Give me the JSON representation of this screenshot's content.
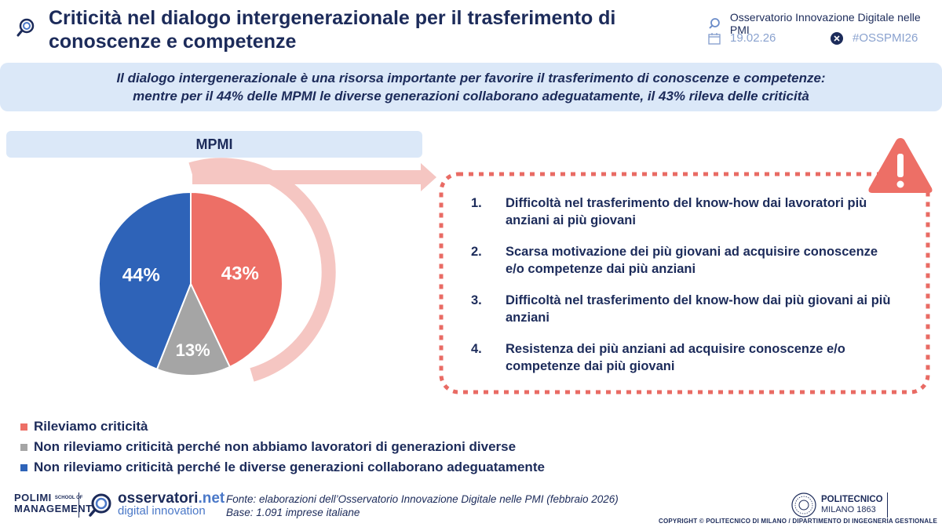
{
  "header": {
    "title_line1": "Criticità nel dialogo intergenerazionale per il trasferimento di",
    "title_line2": "conoscenze e competenze",
    "org": "Osservatorio Innovazione Digitale nelle PMI",
    "date": "19.02.26",
    "hashtag": "#OSSPMI26"
  },
  "banner": {
    "line1": "Il dialogo intergenerazionale è una risorsa importante per favorire il trasferimento di conoscenze e competenze:",
    "line2": "mentre per il 44% delle MPMI le diverse generazioni collaborano adeguatamente, il 43% rileva delle criticità"
  },
  "chart_data": {
    "type": "pie",
    "title": "MPMI",
    "slices": [
      {
        "label": "Rileviamo criticità",
        "value": 43,
        "display": "43%",
        "color": "#ed6f66"
      },
      {
        "label": "Non rileviamo criticità perché non abbiamo lavoratori di generazioni diverse",
        "value": 13,
        "display": "13%",
        "color": "#a5a5a5"
      },
      {
        "label": "Non rileviamo criticità perché le diverse generazioni collaborano adeguatamente",
        "value": 44,
        "display": "44%",
        "color": "#2e63b8"
      }
    ]
  },
  "criticalities": [
    {
      "num": "1.",
      "text": "Difficoltà nel trasferimento del know-how dai lavoratori più anziani ai più giovani"
    },
    {
      "num": "2.",
      "text": "Scarsa motivazione dei più giovani ad acquisire conoscenze e/o competenze dai più anziani"
    },
    {
      "num": "3.",
      "text": "Difficoltà nel trasferimento del know-how dai più giovani ai più anziani"
    },
    {
      "num": "4.",
      "text": "Resistenza dei più anziani ad acquisire conoscenze e/o competenze dai più giovani"
    }
  ],
  "icons": {
    "warning": "warning-triangle-icon",
    "calendar": "calendar-icon",
    "x": "x-logo-icon"
  },
  "footer": {
    "polimi_line1": "POLIMI",
    "polimi_line2": "MANAGEMENT",
    "polimi_small": "SCHOOL OF",
    "oss_name": "osservatori",
    "oss_tld": ".net",
    "oss_sub": "digital innovation",
    "source_line1": "Fonte: elaborazioni dell’Osservatorio Innovazione Digitale nelle PMI (febbraio 2026)",
    "source_line2": "Base: 1.091 imprese italiane",
    "poli_line1": "POLITECNICO",
    "poli_line2": "MILANO 1863",
    "copyright": "COPYRIGHT © POLITECNICO DI MILANO / DIPARTIMENTO DI INGEGNERIA GESTIONALE"
  }
}
